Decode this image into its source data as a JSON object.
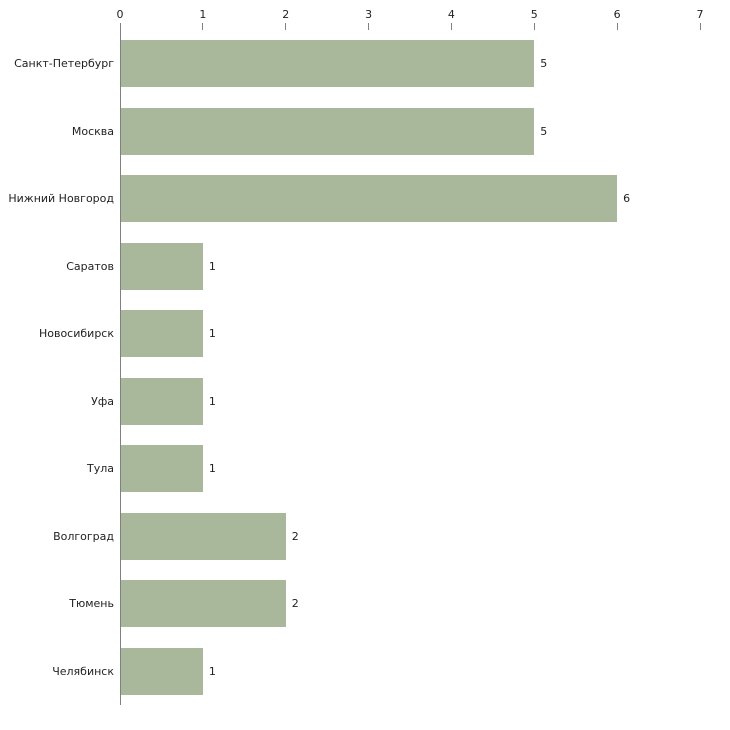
{
  "chart_data": {
    "type": "bar",
    "orientation": "horizontal",
    "title": "",
    "categories": [
      "Санкт-Петербург",
      "Москва",
      "Нижний Новгород",
      "Саратов",
      "Новосибирск",
      "Уфа",
      "Тула",
      "Волгоград",
      "Тюмень",
      "Челябинск"
    ],
    "values": [
      5,
      5,
      6,
      1,
      1,
      1,
      1,
      2,
      2,
      1
    ],
    "value_labels": [
      "5",
      "5",
      "6",
      "1",
      "1",
      "1",
      "1",
      "2",
      "2",
      "1"
    ],
    "x_ticks": [
      "0",
      "1",
      "2",
      "3",
      "4",
      "5",
      "6",
      "7"
    ],
    "xlim": [
      0,
      7
    ],
    "xlabel": "",
    "ylabel": "",
    "grid": false,
    "legend": false,
    "axis_position": "top-left",
    "colors": {
      "bar": "#a9b79b",
      "axis": "#808080",
      "text": "#222222",
      "background": "#ffffff"
    }
  }
}
